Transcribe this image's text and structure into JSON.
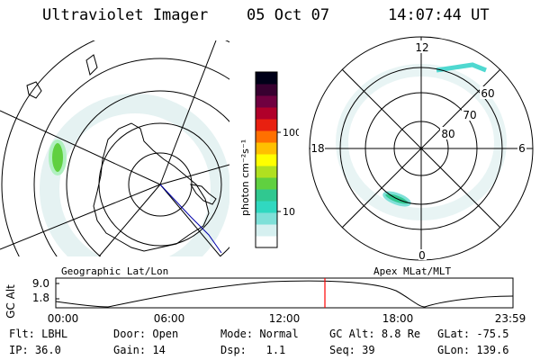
{
  "header": {
    "title": "Ultraviolet Imager",
    "date": "05 Oct 07",
    "time": "14:07:44 UT"
  },
  "left_panel": {
    "caption": "Geographic Lat/Lon"
  },
  "right_panel": {
    "caption": "Apex MLat/MLT",
    "mlt_labels": {
      "top": "12",
      "bottom": "0",
      "left": "18",
      "right": "6"
    },
    "mlat_labels": [
      "60",
      "70",
      "80"
    ]
  },
  "colorbar": {
    "unit_label": "photon cm⁻²s⁻¹",
    "ticks": [
      {
        "label": "100",
        "value": 100
      },
      {
        "label": "10",
        "value": 10
      }
    ],
    "colors": [
      "#ffffff",
      "#d6f0f0",
      "#7fe0d8",
      "#30d8c0",
      "#30c890",
      "#60d040",
      "#b0e020",
      "#ffff00",
      "#ffc000",
      "#ff7000",
      "#e82010",
      "#b0002a",
      "#700040",
      "#380030",
      "#000018"
    ]
  },
  "timeline": {
    "axis_label": "GC Alt",
    "y_ticks": [
      "9.0",
      "1.8"
    ],
    "x_ticks": [
      "00:00",
      "06:00",
      "12:00",
      "18:00",
      "23:59"
    ],
    "current_time_marker": "14:07",
    "marker_color": "#ff0000"
  },
  "status": {
    "flt": {
      "label": "Flt:",
      "value": "LBHL"
    },
    "door": {
      "label": "Door:",
      "value": "Open"
    },
    "mode": {
      "label": "Mode:",
      "value": "Normal"
    },
    "gc_alt": {
      "label": "GC Alt:",
      "value": "8.8 Re"
    },
    "glat": {
      "label": "GLat:",
      "value": "-75.5"
    },
    "ip": {
      "label": "IP:",
      "value": "36.0"
    },
    "gain": {
      "label": "Gain:",
      "value": "14"
    },
    "dsp": {
      "label": "Dsp:",
      "value": "1.1"
    },
    "seq": {
      "label": "Seq:",
      "value": "39"
    },
    "glon": {
      "label": "GLon:",
      "value": "139.6"
    }
  }
}
